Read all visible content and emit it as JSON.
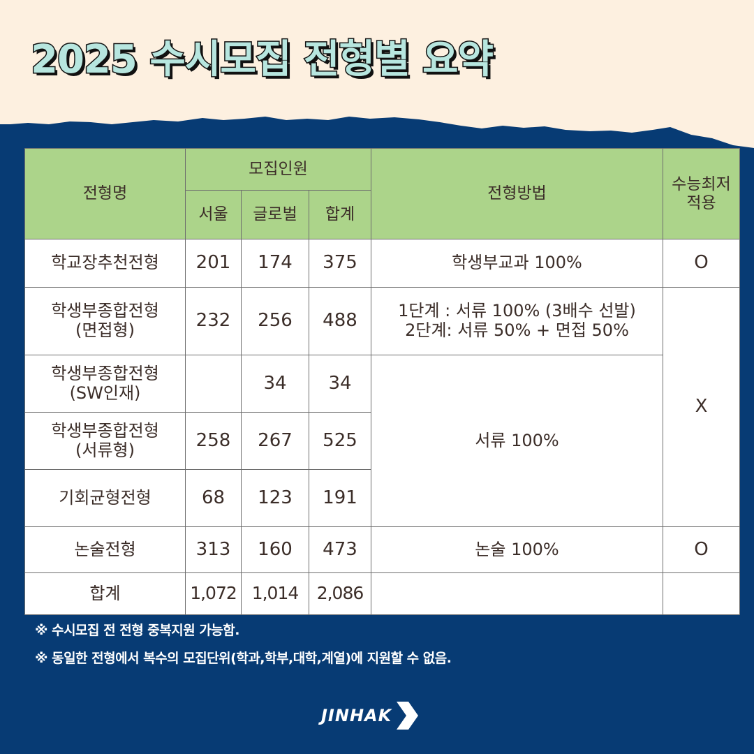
{
  "title": "2025 수시모집 전형별 요약",
  "colors": {
    "header_bg": "#acd48a",
    "background": "#073b74",
    "cream": "#fdf0e0",
    "title_fill": "#b7e6df"
  },
  "table": {
    "headers": {
      "name": "전형명",
      "recruit": "모집인원",
      "seoul": "서울",
      "global": "글로벌",
      "sum": "합계",
      "method": "전형방법",
      "csat": [
        "수능최저",
        "적용"
      ]
    },
    "rows": [
      {
        "name": [
          "학교장추천전형"
        ],
        "seoul": "201",
        "global": "174",
        "sum": "375",
        "method": [
          "학생부교과 100%"
        ],
        "csat": "O"
      },
      {
        "name": [
          "학생부종합전형",
          "(면접형)"
        ],
        "seoul": "232",
        "global": "256",
        "sum": "488",
        "method": [
          "1단계 : 서류 100% (3배수 선발)",
          "2단계: 서류 50% + 면접 50%"
        ],
        "csat": "X"
      },
      {
        "name": [
          "학생부종합전형",
          "(SW인재)"
        ],
        "seoul": "",
        "global": "34",
        "sum": "34",
        "method": [
          "서류 100%"
        ]
      },
      {
        "name": [
          "학생부종합전형",
          "(서류형)"
        ],
        "seoul": "258",
        "global": "267",
        "sum": "525"
      },
      {
        "name": [
          "기회균형전형"
        ],
        "seoul": "68",
        "global": "123",
        "sum": "191"
      },
      {
        "name": [
          "논술전형"
        ],
        "seoul": "313",
        "global": "160",
        "sum": "473",
        "method": [
          "논술 100%"
        ],
        "csat": "O"
      },
      {
        "name": [
          "합계"
        ],
        "seoul": "1,072",
        "global": "1,014",
        "sum": "2,086",
        "method": [
          ""
        ],
        "csat": ""
      }
    ]
  },
  "notes": [
    "※ 수시모집 전 전형 중복지원 가능함.",
    "※ 동일한 전형에서 복수의 모집단위(학과,학부,대학,계열)에 지원할 수 없음."
  ],
  "logo": {
    "text": "JINHAK",
    "icon": "chevron-right-icon"
  }
}
